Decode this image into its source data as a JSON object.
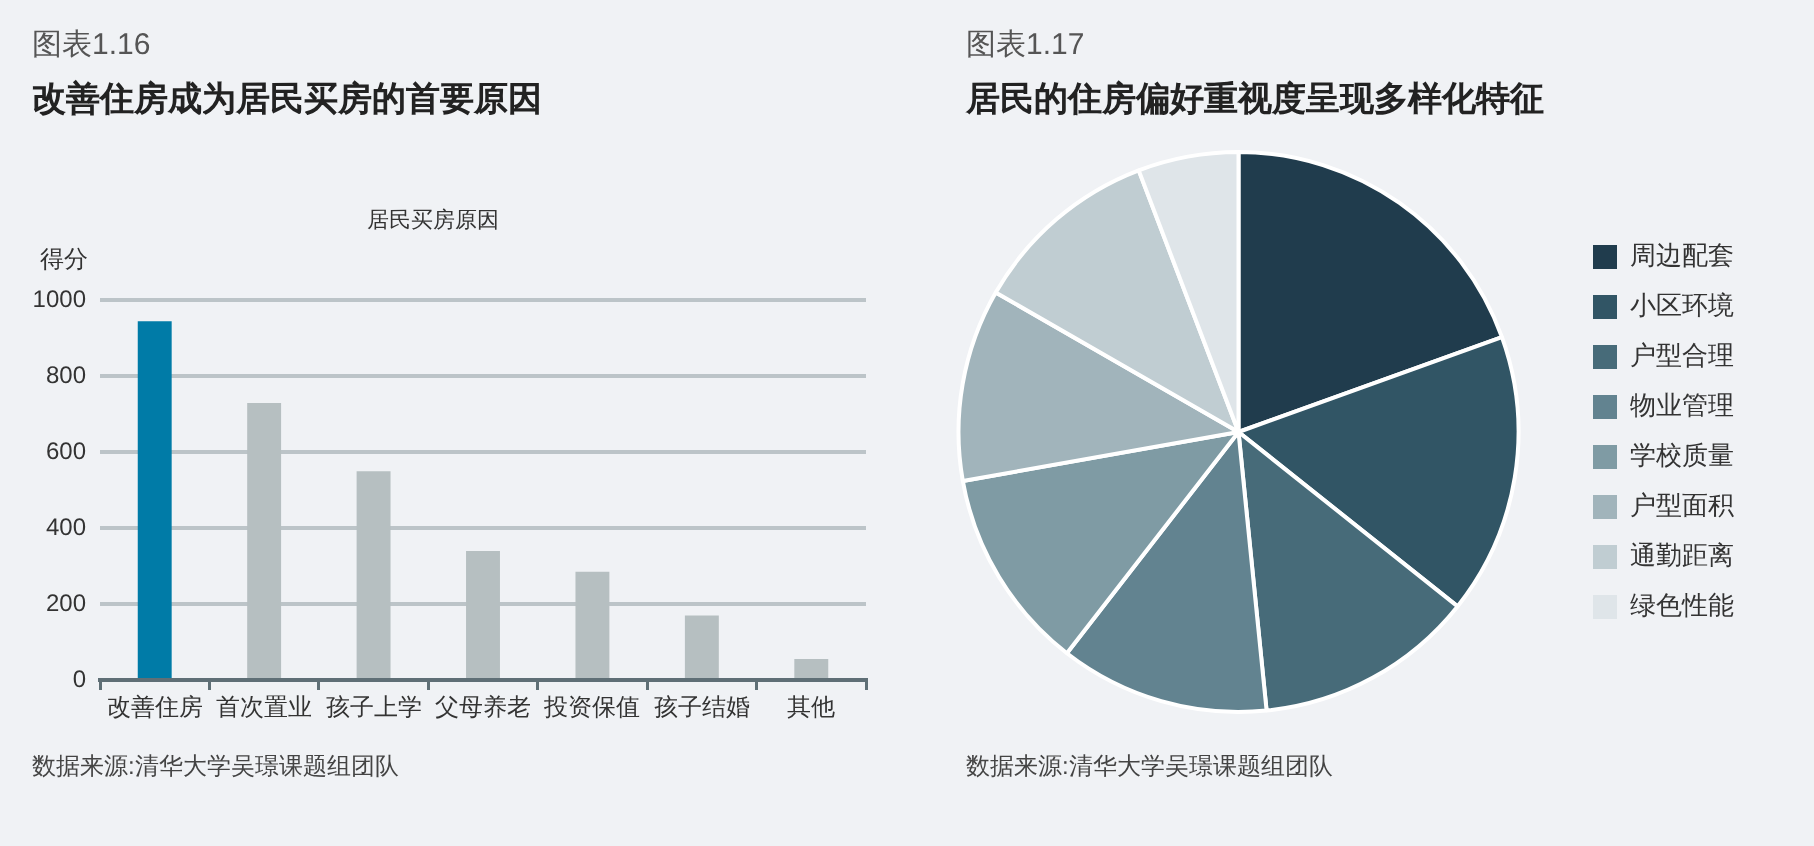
{
  "chart_data": [
    {
      "type": "bar",
      "title": "改善住房成为居民买房的首要原因",
      "subtitle": "居民买房原因",
      "ylabel": "得分",
      "categories": [
        "改善住房",
        "首次置业",
        "孩子上学",
        "父母养老",
        "投资保值",
        "孩子结婚",
        "其他"
      ],
      "values": [
        945,
        730,
        550,
        340,
        285,
        170,
        55
      ],
      "colors": [
        "#007ba7",
        "#b6bfc1",
        "#b6bfc1",
        "#b6bfc1",
        "#b6bfc1",
        "#b6bfc1",
        "#b6bfc1"
      ],
      "ylim": [
        0,
        1000
      ],
      "yticks": [
        0,
        200,
        400,
        600,
        800,
        1000
      ],
      "grid": "y",
      "annotations": [
        "图表1.16",
        "数据来源:清华大学吴璟课题组团队"
      ]
    },
    {
      "type": "pie",
      "title": "居民的住房偏好重视度呈现多样化特征",
      "categories": [
        "周边配套",
        "小区环境",
        "户型合理",
        "物业管理",
        "学校质量",
        "户型面积",
        "通勤距离",
        "绿色性能"
      ],
      "values": [
        19.5,
        16.2,
        12.7,
        12.1,
        11.7,
        11.1,
        10.9,
        5.8
      ],
      "colors": [
        "#203c4d",
        "#315565",
        "#476b79",
        "#628390",
        "#7f9ba4",
        "#a1b4bb",
        "#c0cdd2",
        "#dfe5e9"
      ],
      "legend": "right",
      "annotations": [
        "图表1.17",
        "数据来源:清华大学吴璟课题组团队"
      ]
    }
  ]
}
